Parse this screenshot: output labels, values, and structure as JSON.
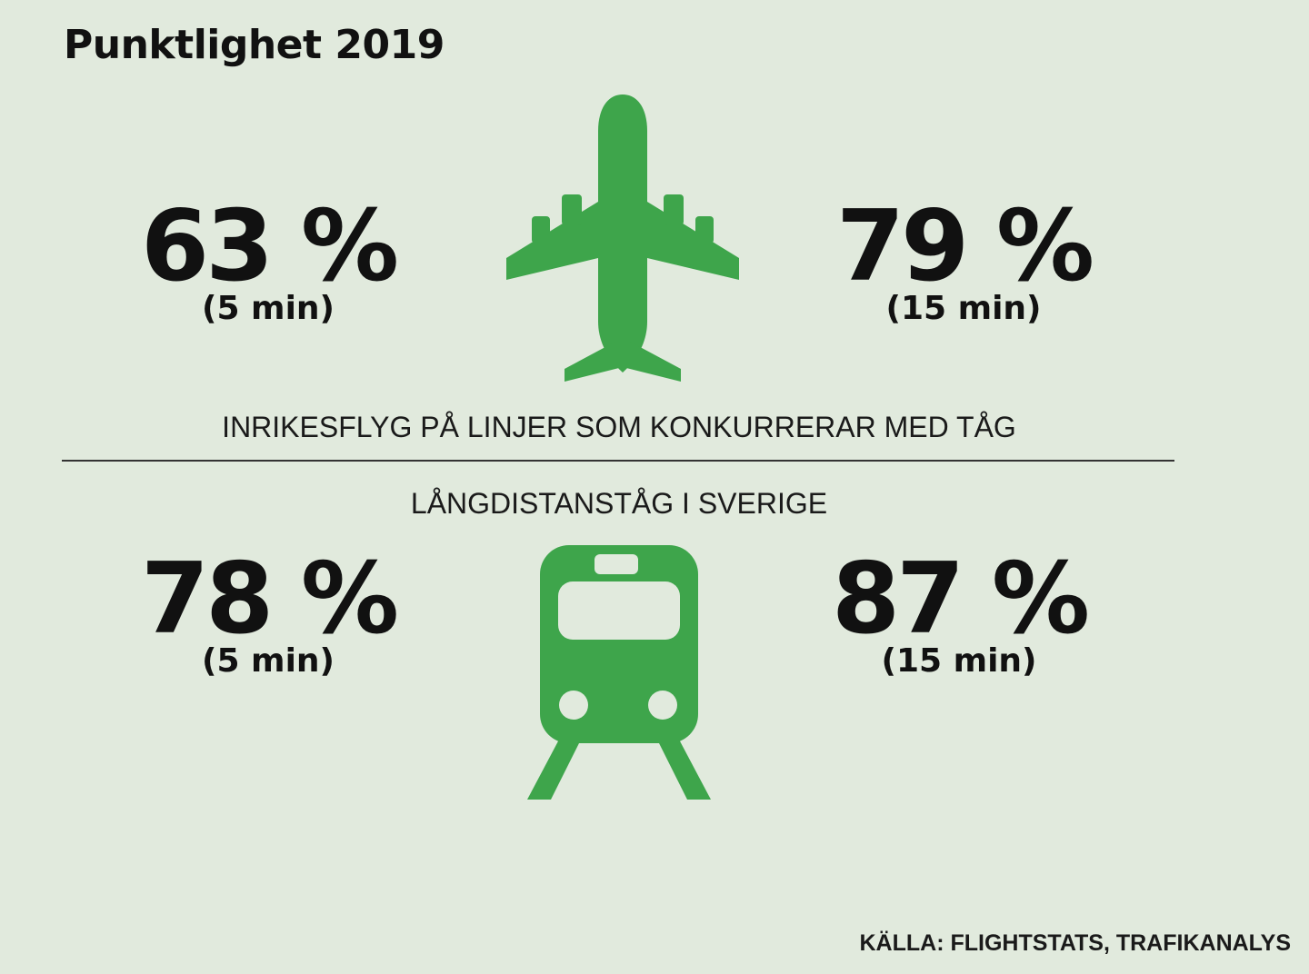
{
  "title": "Punktlighet 2019",
  "flights": {
    "caption": "INRIKESFLYG PÅ LINJER SOM KONKURRERAR MED TÅG",
    "stat_5min": {
      "value": "63 %",
      "label": "(5 min)"
    },
    "stat_15min": {
      "value": "79 %",
      "label": "(15 min)"
    },
    "icon": "airplane-icon"
  },
  "trains": {
    "caption": "LÅNGDISTANSTÅG I SVERIGE",
    "stat_5min": {
      "value": "78 %",
      "label": "(5 min)"
    },
    "stat_15min": {
      "value": "87 %",
      "label": "(15 min)"
    },
    "icon": "train-icon"
  },
  "source": "KÄLLA: FLIGHTSTATS, TRAFIKANALYS",
  "colors": {
    "background": "#e1eadd",
    "accent_green": "#3ea54b",
    "text": "#111111"
  }
}
